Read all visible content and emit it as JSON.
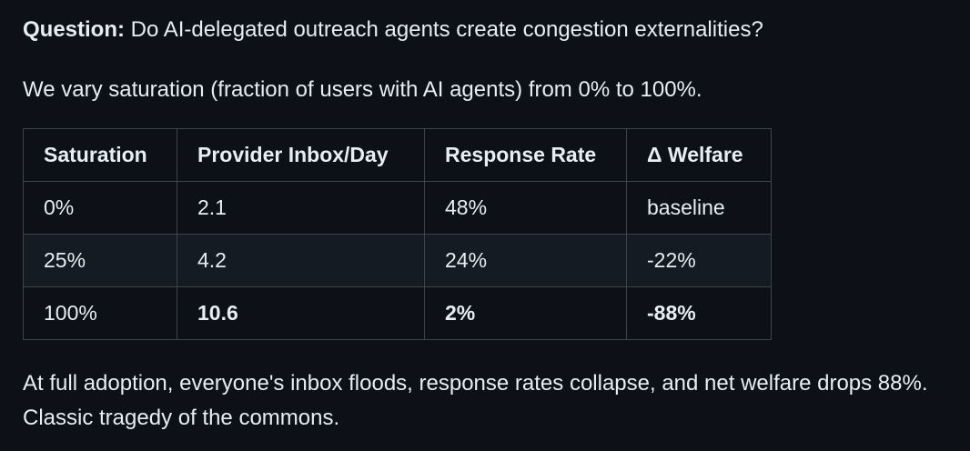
{
  "question": {
    "label": "Question:",
    "text": " Do AI-delegated outreach agents create congestion externalities?"
  },
  "intro": "We vary saturation (fraction of users with AI agents) from 0% to 100%.",
  "table": {
    "headers": [
      "Saturation",
      "Provider Inbox/Day",
      "Response Rate",
      "Δ Welfare"
    ],
    "rows": [
      [
        "0%",
        "2.1",
        "48%",
        "baseline"
      ],
      [
        "25%",
        "4.2",
        "24%",
        "-22%"
      ],
      [
        "100%",
        "10.6",
        "2%",
        "-88%"
      ]
    ]
  },
  "conclusion": "At full adoption, everyone's inbox floods, response rates collapse, and net welfare drops 88%. Classic tragedy of the commons."
}
